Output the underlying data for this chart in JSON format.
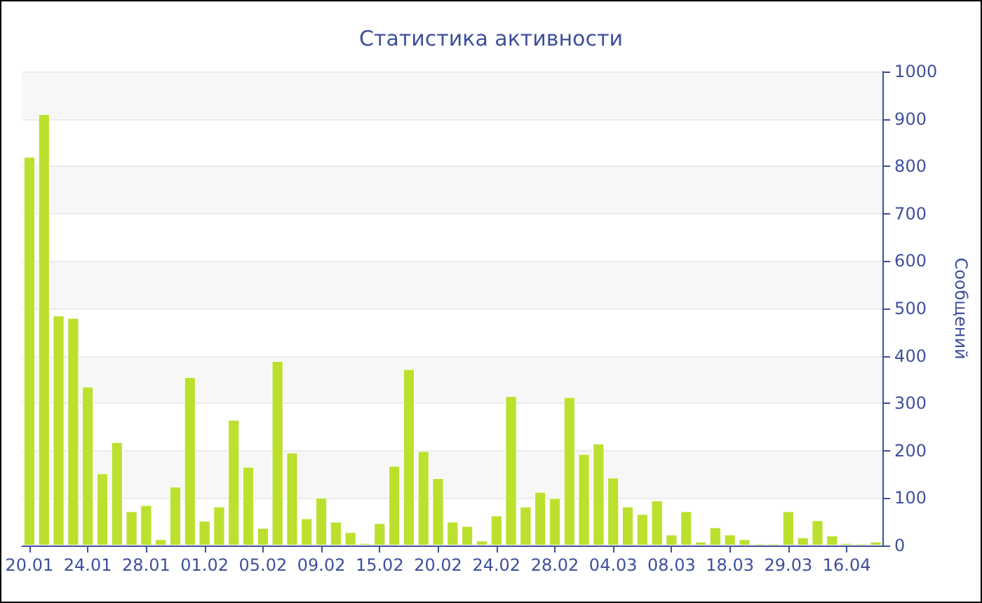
{
  "chart_data": {
    "type": "bar",
    "title": "Статистика активности",
    "ylabel": "Сообщений",
    "categories": [
      "20.01",
      null,
      null,
      null,
      "24.01",
      null,
      null,
      null,
      "28.01",
      null,
      null,
      null,
      "01.02",
      null,
      null,
      null,
      "05.02",
      null,
      null,
      null,
      "09.02",
      null,
      null,
      null,
      "15.02",
      null,
      null,
      null,
      "20.02",
      null,
      null,
      null,
      "24.02",
      null,
      null,
      null,
      "28.02",
      null,
      null,
      null,
      "04.03",
      null,
      null,
      null,
      "08.03",
      null,
      null,
      null,
      "18.03",
      null,
      null,
      null,
      "29.03",
      null,
      null,
      null,
      "16.04",
      null,
      null
    ],
    "values": [
      820,
      910,
      485,
      480,
      335,
      152,
      218,
      72,
      85,
      13,
      124,
      355,
      52,
      82,
      265,
      166,
      37,
      389,
      196,
      57,
      101,
      50,
      28,
      5,
      47,
      168,
      372,
      199,
      142,
      50,
      41,
      10,
      63,
      315,
      82,
      113,
      100,
      313,
      193,
      215,
      143,
      82,
      66,
      95,
      23,
      72,
      8,
      38,
      23,
      13,
      4,
      4,
      72,
      17,
      53,
      21,
      5,
      4,
      8
    ],
    "color": "#bbe02e",
    "ylim": [
      0,
      1000
    ],
    "yticks": [
      0,
      100,
      200,
      300,
      400,
      500,
      600,
      700,
      800,
      900,
      1000
    ],
    "grid": "y"
  }
}
